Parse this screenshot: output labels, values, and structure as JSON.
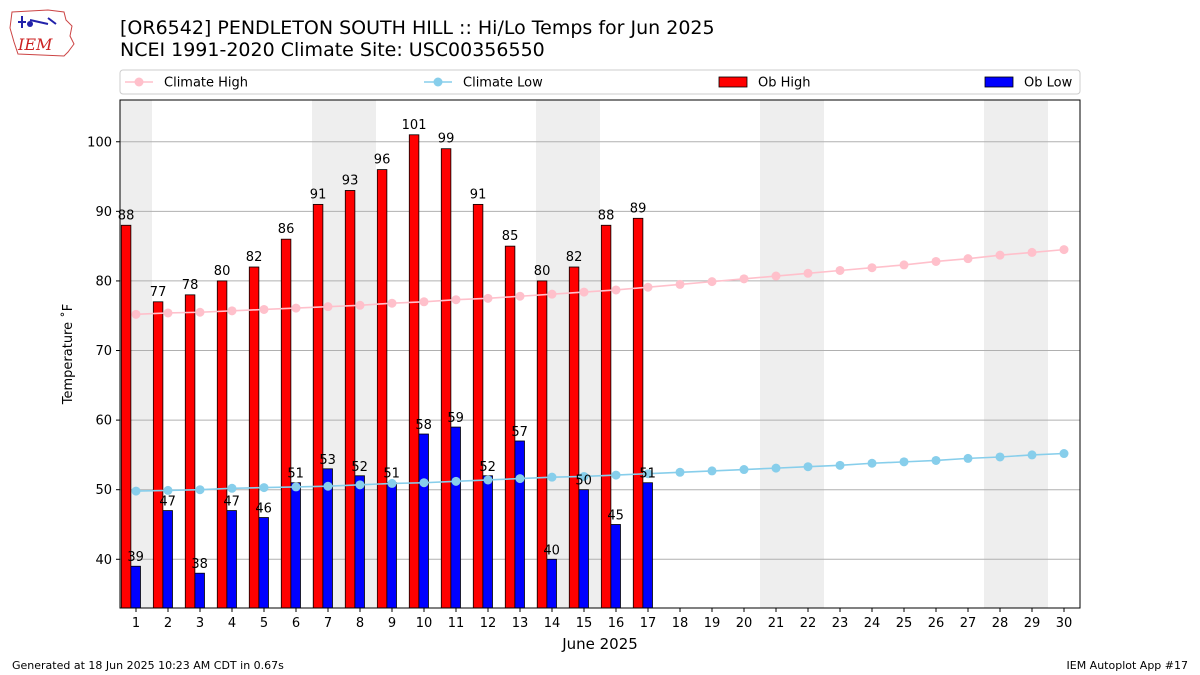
{
  "header": {
    "logo_text": "IEM",
    "title_line1": "[OR6542] PENDLETON SOUTH HILL :: Hi/Lo Temps for Jun 2025",
    "title_line2": "NCEI 1991-2020 Climate Site: USC00356550"
  },
  "footer": {
    "left": "Generated at 18 Jun 2025 10:23 AM CDT in 0.67s",
    "right": "IEM Autoplot App #17"
  },
  "colors": {
    "climate_high": "#ffc0cb",
    "climate_low": "#87ceeb",
    "ob_high": "#ff0000",
    "ob_low": "#0000ff",
    "weekend_shade": "#eeeeee",
    "grid": "#b0b0b0"
  },
  "chart_data": {
    "type": "bar",
    "xlabel": "June 2025",
    "ylabel": "Temperature $^\\circ$F",
    "ylabel_display": "Temperature ˚F",
    "xlim": [
      0.5,
      30.5
    ],
    "ylim": [
      33,
      106
    ],
    "yticks": [
      40,
      50,
      60,
      70,
      80,
      90,
      100
    ],
    "grid": "horizontal",
    "legend_placement": "top",
    "days": [
      1,
      2,
      3,
      4,
      5,
      6,
      7,
      8,
      9,
      10,
      11,
      12,
      13,
      14,
      15,
      16,
      17,
      18,
      19,
      20,
      21,
      22,
      23,
      24,
      25,
      26,
      27,
      28,
      29,
      30
    ],
    "weekend_days": [
      1,
      7,
      8,
      14,
      15,
      21,
      22,
      28,
      29
    ],
    "series": [
      {
        "name": "Climate High",
        "kind": "line",
        "values": [
          75.2,
          75.4,
          75.5,
          75.7,
          75.9,
          76.1,
          76.3,
          76.5,
          76.8,
          77.0,
          77.3,
          77.5,
          77.8,
          78.1,
          78.4,
          78.7,
          79.1,
          79.5,
          79.9,
          80.3,
          80.7,
          81.1,
          81.5,
          81.9,
          82.3,
          82.8,
          83.2,
          83.7,
          84.1,
          84.5
        ]
      },
      {
        "name": "Climate Low",
        "kind": "line",
        "values": [
          49.8,
          49.9,
          50.0,
          50.2,
          50.3,
          50.4,
          50.5,
          50.7,
          50.9,
          51.0,
          51.2,
          51.4,
          51.6,
          51.8,
          51.9,
          52.1,
          52.3,
          52.5,
          52.7,
          52.9,
          53.1,
          53.3,
          53.5,
          53.8,
          54.0,
          54.2,
          54.5,
          54.7,
          55.0,
          55.2
        ]
      },
      {
        "name": "Ob High",
        "kind": "bar",
        "values": [
          88,
          77,
          78,
          80,
          82,
          86,
          91,
          93,
          96,
          101,
          99,
          91,
          85,
          80,
          82,
          88,
          89
        ]
      },
      {
        "name": "Ob Low",
        "kind": "bar",
        "values": [
          39,
          47,
          38,
          47,
          46,
          51,
          53,
          52,
          51,
          58,
          59,
          52,
          57,
          40,
          50,
          45,
          51
        ]
      }
    ]
  }
}
